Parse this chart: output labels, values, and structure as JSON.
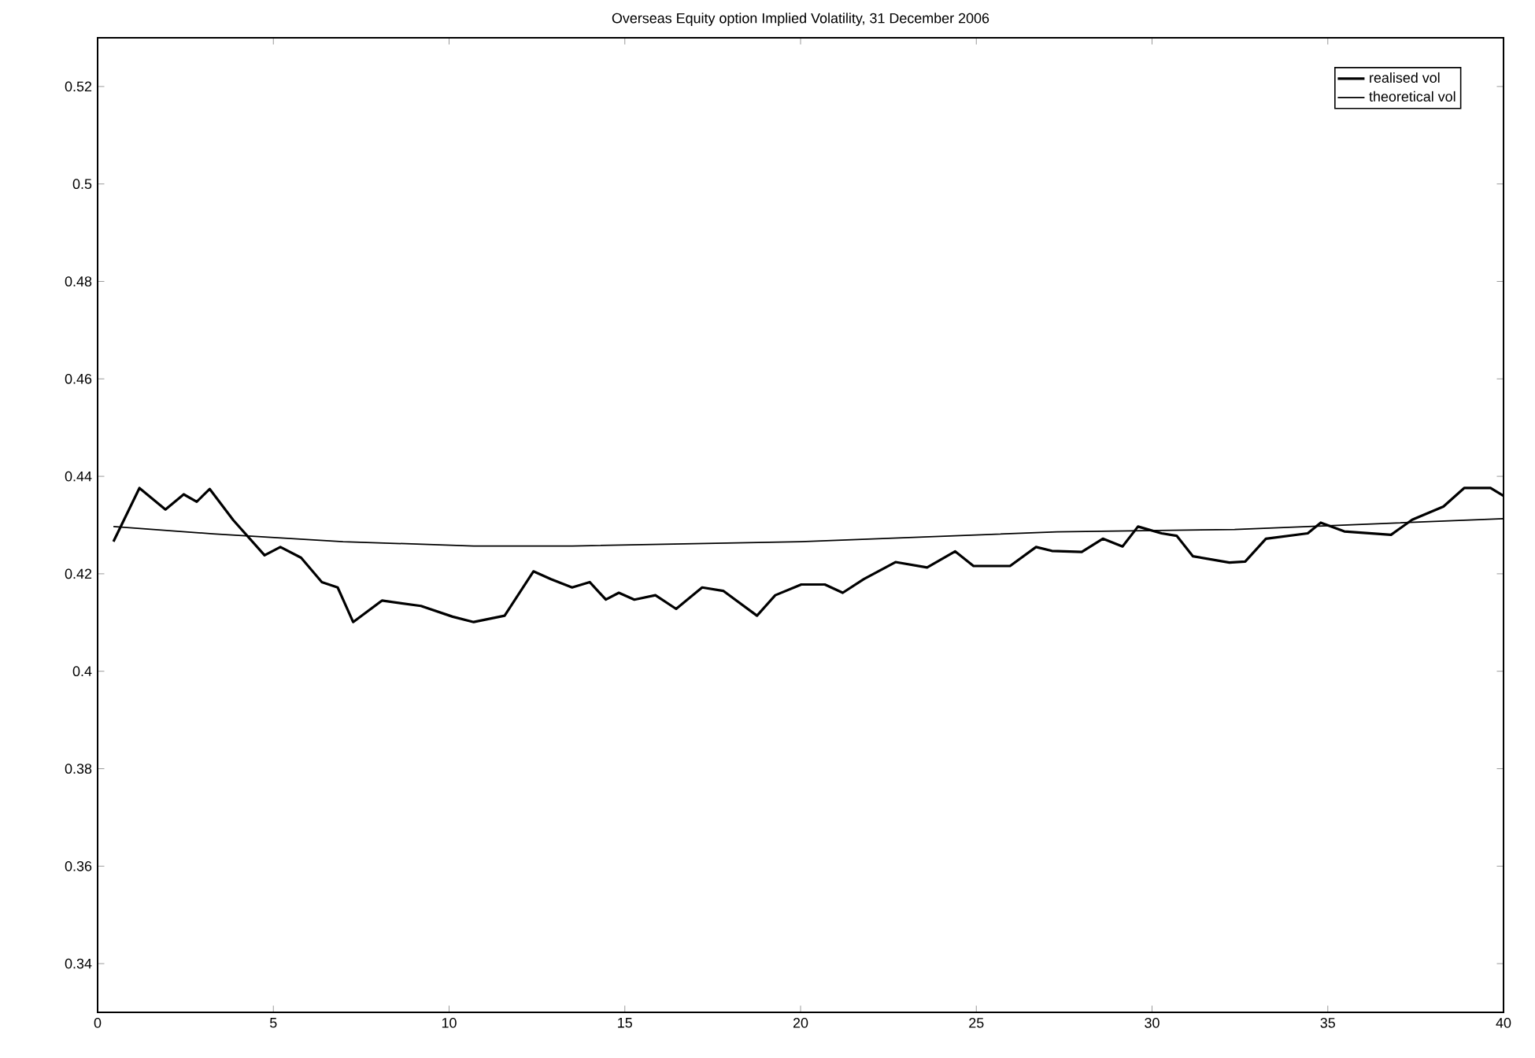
{
  "chart_data": {
    "type": "line",
    "title": "Overseas Equity option Implied Volatility, 31 December 2006",
    "xlim": [
      0,
      40
    ],
    "xticks": [
      0,
      5,
      10,
      15,
      20,
      25,
      30,
      35,
      40
    ],
    "ylim": [
      0.33,
      0.53
    ],
    "yticks": [
      0.34,
      0.36,
      0.38,
      0.4,
      0.42,
      0.44,
      0.46,
      0.48,
      0.5,
      0.52
    ],
    "legend": "top right",
    "grid": false,
    "marker": "none",
    "line_style": "solid",
    "series": [
      {
        "name": "realised vol",
        "color": "#000000",
        "x": [
          0.45,
          1.19,
          1.93,
          2.45,
          2.82,
          3.19,
          3.86,
          4.75,
          5.2,
          5.79,
          6.38,
          6.83,
          7.27,
          8.09,
          9.2,
          10.1,
          10.7,
          11.58,
          12.4,
          12.9,
          13.5,
          14.0,
          14.46,
          14.83,
          15.27,
          15.87,
          16.46,
          17.2,
          17.8,
          18.76,
          19.28,
          20.02,
          20.69,
          21.2,
          21.8,
          22.7,
          23.6,
          24.4,
          24.92,
          25.96,
          26.7,
          27.15,
          28.0,
          28.6,
          29.16,
          29.6,
          30.27,
          30.7,
          31.16,
          32.2,
          32.65,
          33.24,
          34.43,
          34.8,
          35.47,
          36.8,
          37.4,
          38.29,
          38.88,
          39.63,
          40
        ],
        "values": [
          0.4266,
          0.4376,
          0.4332,
          0.4363,
          0.4348,
          0.4374,
          0.431,
          0.4238,
          0.4255,
          0.4233,
          0.4183,
          0.4172,
          0.4101,
          0.4145,
          0.4134,
          0.4112,
          0.4101,
          0.4114,
          0.4205,
          0.4189,
          0.4172,
          0.4183,
          0.4147,
          0.4161,
          0.4147,
          0.4156,
          0.4128,
          0.4172,
          0.4165,
          0.4114,
          0.4156,
          0.4178,
          0.4178,
          0.4161,
          0.4189,
          0.4224,
          0.4213,
          0.4246,
          0.4216,
          0.4216,
          0.4255,
          0.4247,
          0.4245,
          0.4272,
          0.4256,
          0.4297,
          0.4283,
          0.4278,
          0.4236,
          0.4223,
          0.4225,
          0.4272,
          0.4283,
          0.4305,
          0.4287,
          0.428,
          0.4311,
          0.4338,
          0.4376,
          0.4376,
          0.436
        ]
      },
      {
        "name": "theoretical vol",
        "color": "#000000",
        "x": [
          0.45,
          3.27,
          6.98,
          10.7,
          13.5,
          20.0,
          27.3,
          32.35,
          40
        ],
        "values": [
          0.4297,
          0.4282,
          0.4266,
          0.4257,
          0.4257,
          0.4266,
          0.4286,
          0.4291,
          0.4313
        ]
      }
    ]
  }
}
